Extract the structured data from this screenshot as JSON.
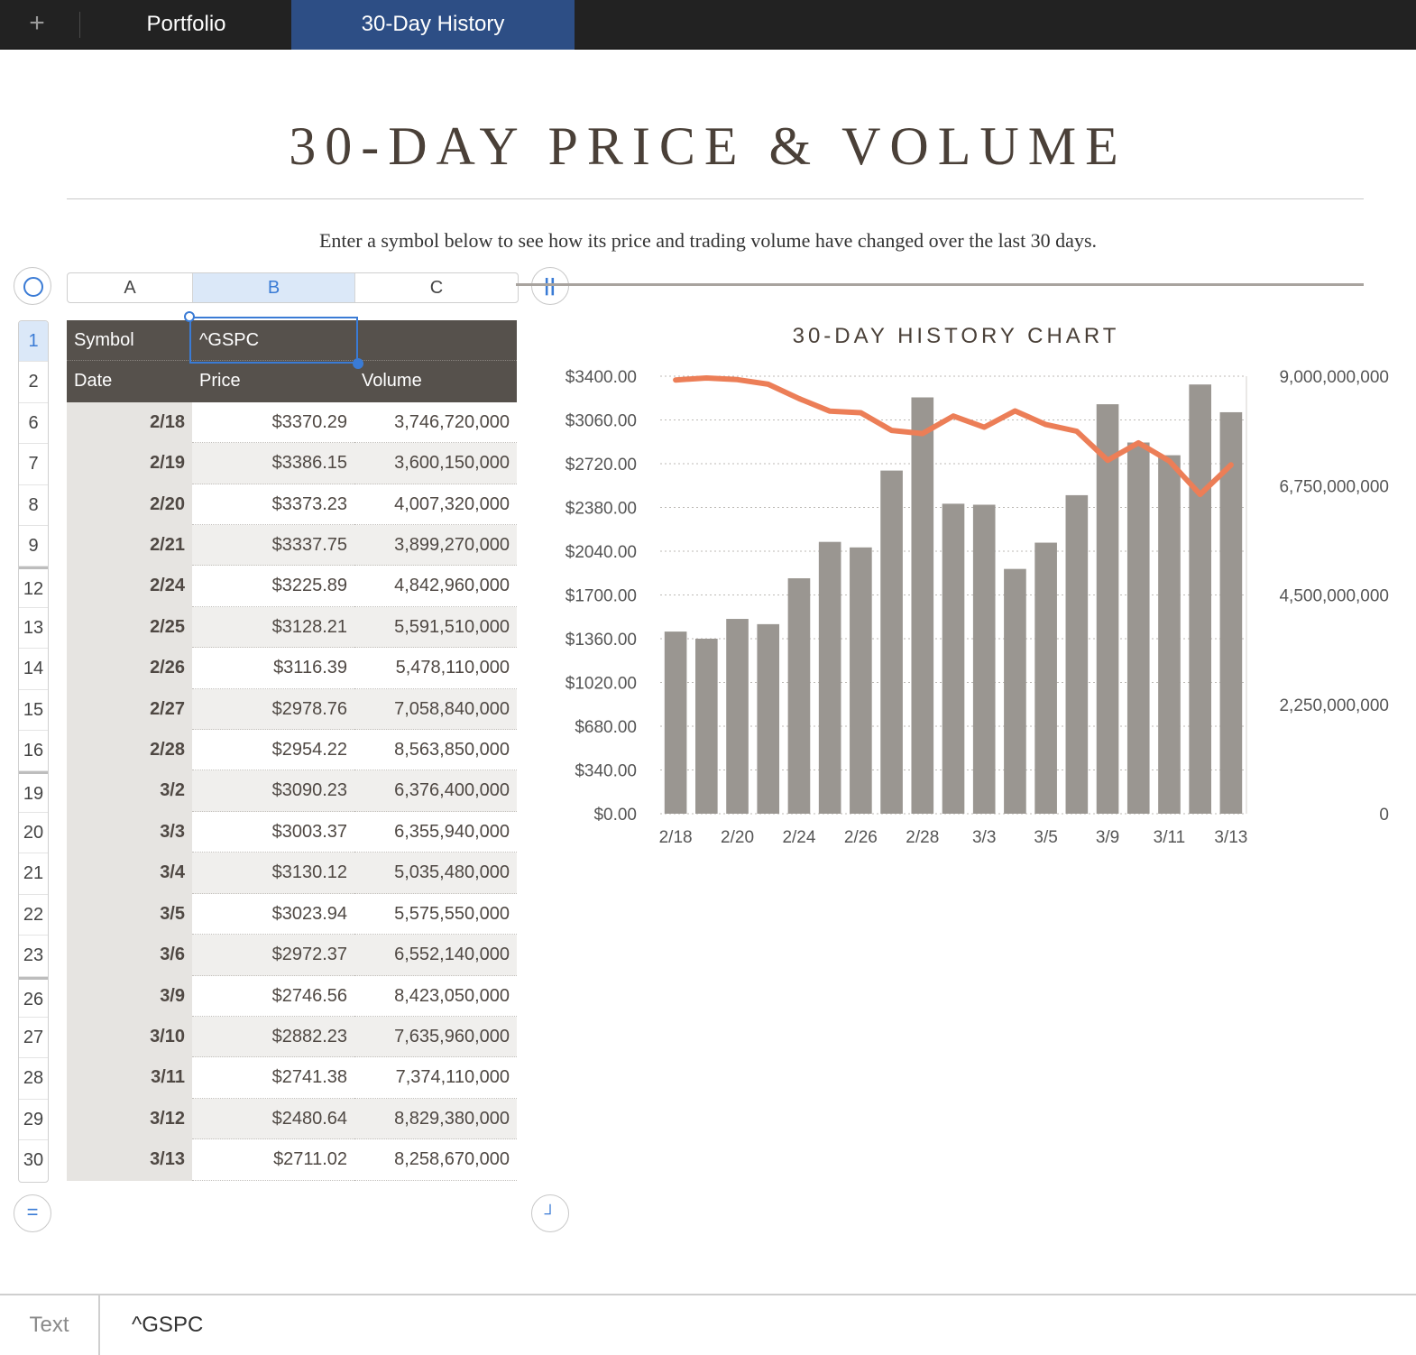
{
  "tabs": {
    "add_label": "+",
    "items": [
      {
        "label": "Portfolio"
      },
      {
        "label": "30-Day History"
      }
    ]
  },
  "page": {
    "title": "30-DAY PRICE & VOLUME",
    "subtitle": "Enter a symbol below to see how its price and trading volume have changed over the last 30 days."
  },
  "sheet": {
    "columns": [
      "A",
      "B",
      "C"
    ],
    "row_numbers": [
      "1",
      "2",
      "6",
      "7",
      "8",
      "9",
      "12",
      "13",
      "14",
      "15",
      "16",
      "19",
      "20",
      "21",
      "22",
      "23",
      "26",
      "27",
      "28",
      "29",
      "30"
    ],
    "symbol_label": "Symbol",
    "symbol_value": "^GSPC",
    "headers": {
      "date": "Date",
      "price": "Price",
      "volume": "Volume"
    },
    "rows": [
      {
        "date": "2/18",
        "price": "$3370.29",
        "volume": "3,746,720,000"
      },
      {
        "date": "2/19",
        "price": "$3386.15",
        "volume": "3,600,150,000"
      },
      {
        "date": "2/20",
        "price": "$3373.23",
        "volume": "4,007,320,000"
      },
      {
        "date": "2/21",
        "price": "$3337.75",
        "volume": "3,899,270,000"
      },
      {
        "date": "2/24",
        "price": "$3225.89",
        "volume": "4,842,960,000"
      },
      {
        "date": "2/25",
        "price": "$3128.21",
        "volume": "5,591,510,000"
      },
      {
        "date": "2/26",
        "price": "$3116.39",
        "volume": "5,478,110,000"
      },
      {
        "date": "2/27",
        "price": "$2978.76",
        "volume": "7,058,840,000"
      },
      {
        "date": "2/28",
        "price": "$2954.22",
        "volume": "8,563,850,000"
      },
      {
        "date": "3/2",
        "price": "$3090.23",
        "volume": "6,376,400,000"
      },
      {
        "date": "3/3",
        "price": "$3003.37",
        "volume": "6,355,940,000"
      },
      {
        "date": "3/4",
        "price": "$3130.12",
        "volume": "5,035,480,000"
      },
      {
        "date": "3/5",
        "price": "$3023.94",
        "volume": "5,575,550,000"
      },
      {
        "date": "3/6",
        "price": "$2972.37",
        "volume": "6,552,140,000"
      },
      {
        "date": "3/9",
        "price": "$2746.56",
        "volume": "8,423,050,000"
      },
      {
        "date": "3/10",
        "price": "$2882.23",
        "volume": "7,635,960,000"
      },
      {
        "date": "3/11",
        "price": "$2741.38",
        "volume": "7,374,110,000"
      },
      {
        "date": "3/12",
        "price": "$2480.64",
        "volume": "8,829,380,000"
      },
      {
        "date": "3/13",
        "price": "$2711.02",
        "volume": "8,258,670,000"
      }
    ]
  },
  "formula_bar": {
    "label": "Text",
    "value": "^GSPC"
  },
  "colors": {
    "bar": "#9a9691",
    "line": "#ec7e57",
    "header": "#56514c",
    "accent": "#3a7bd5",
    "active_tab": "#2d4e85"
  },
  "chart_data": {
    "type": "bar",
    "title": "30-DAY HISTORY CHART",
    "categories": [
      "2/18",
      "2/19",
      "2/20",
      "2/21",
      "2/24",
      "2/25",
      "2/26",
      "2/27",
      "2/28",
      "3/2",
      "3/3",
      "3/4",
      "3/5",
      "3/6",
      "3/9",
      "3/10",
      "3/11",
      "3/12",
      "3/13"
    ],
    "x_tick_labels": [
      "2/18",
      "2/20",
      "2/24",
      "2/26",
      "2/28",
      "3/3",
      "3/5",
      "3/9",
      "3/11",
      "3/13"
    ],
    "series": [
      {
        "name": "Volume",
        "kind": "bar",
        "axis": "right",
        "values": [
          3746720000,
          3600150000,
          4007320000,
          3899270000,
          4842960000,
          5591510000,
          5478110000,
          7058840000,
          8563850000,
          6376400000,
          6355940000,
          5035480000,
          5575550000,
          6552140000,
          8423050000,
          7635960000,
          7374110000,
          8829380000,
          8258670000
        ]
      },
      {
        "name": "Price",
        "kind": "line",
        "axis": "left",
        "values": [
          3370.29,
          3386.15,
          3373.23,
          3337.75,
          3225.89,
          3128.21,
          3116.39,
          2978.76,
          2954.22,
          3090.23,
          3003.37,
          3130.12,
          3023.94,
          2972.37,
          2746.56,
          2882.23,
          2741.38,
          2480.64,
          2711.02
        ]
      }
    ],
    "y_left": {
      "min": 0,
      "max": 3400,
      "ticks": [
        "$3400.00",
        "$3060.00",
        "$2720.00",
        "$2380.00",
        "$2040.00",
        "$1700.00",
        "$1360.00",
        "$1020.00",
        "$680.00",
        "$340.00",
        "$0.00"
      ]
    },
    "y_right": {
      "min": 0,
      "max": 9000000000,
      "ticks": [
        "9,000,000,000",
        "6,750,000,000",
        "4,500,000,000",
        "2,250,000,000",
        "0"
      ]
    },
    "grid": true,
    "legend": "none"
  }
}
